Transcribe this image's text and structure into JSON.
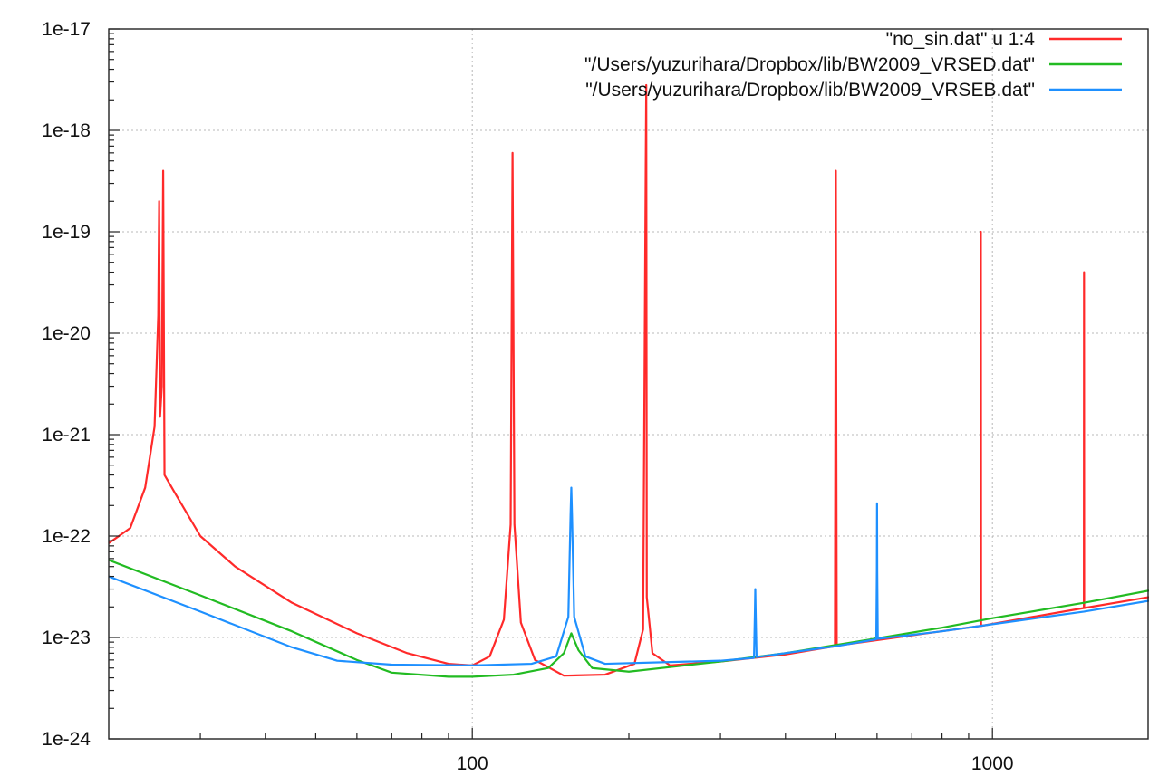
{
  "chart_data": {
    "type": "line",
    "title": "",
    "xlabel": "",
    "ylabel": "",
    "x_scale": "log",
    "y_scale": "log",
    "xlim": [
      20,
      2000
    ],
    "ylim": [
      1e-24,
      1e-17
    ],
    "grid": true,
    "legend_position": "top-right",
    "x_ticks": [
      {
        "value": 100,
        "label": "100"
      },
      {
        "value": 1000,
        "label": "1000"
      }
    ],
    "y_ticks": [
      {
        "value": 1e-17,
        "label": "1e-17"
      },
      {
        "value": 1e-18,
        "label": "1e-18"
      },
      {
        "value": 1e-19,
        "label": "1e-19"
      },
      {
        "value": 1e-20,
        "label": "1e-20"
      },
      {
        "value": 1e-21,
        "label": "1e-21"
      },
      {
        "value": 1e-22,
        "label": "1e-22"
      },
      {
        "value": 1e-23,
        "label": "1e-23"
      },
      {
        "value": 1e-24,
        "label": "1e-24"
      }
    ],
    "series": [
      {
        "name": "\"no_sin.dat\" u 1:4",
        "color": "#ff2a2a",
        "points": [
          [
            20,
            8.5e-23
          ],
          [
            22,
            1.2e-22
          ],
          [
            23.5,
            3e-22
          ],
          [
            24.5,
            1.2e-21
          ],
          [
            24.9,
            1.5e-20
          ],
          [
            25.0,
            2e-19
          ],
          [
            25.1,
            1.5e-21
          ],
          [
            25.3,
            3e-21
          ],
          [
            25.45,
            4e-19
          ],
          [
            25.6,
            4e-22
          ],
          [
            27,
            2.5e-22
          ],
          [
            30,
            1e-22
          ],
          [
            35,
            5e-23
          ],
          [
            45,
            2.2e-23
          ],
          [
            60,
            1.1e-23
          ],
          [
            75,
            7e-24
          ],
          [
            90,
            5.5e-24
          ],
          [
            100,
            5.3e-24
          ],
          [
            108,
            6.5e-24
          ],
          [
            115,
            1.5e-23
          ],
          [
            118.5,
            1.3e-22
          ],
          [
            119.5,
            6e-19
          ],
          [
            120.5,
            1.3e-22
          ],
          [
            124,
            1.4e-23
          ],
          [
            132,
            6e-24
          ],
          [
            150,
            4.2e-24
          ],
          [
            180,
            4.3e-24
          ],
          [
            205,
            5.5e-24
          ],
          [
            213,
            1.2e-23
          ],
          [
            215.5,
            4.5e-19
          ],
          [
            216,
            2.8e-18
          ],
          [
            216.5,
            2.5e-23
          ],
          [
            222,
            7e-24
          ],
          [
            240,
            5.3e-24
          ],
          [
            300,
            5.8e-24
          ],
          [
            400,
            6.8e-24
          ],
          [
            498,
            8.2e-24
          ],
          [
            500,
            4e-19
          ],
          [
            502,
            8.3e-24
          ],
          [
            700,
            1.05e-23
          ],
          [
            949,
            1.3e-23
          ],
          [
            950,
            1e-19
          ],
          [
            951,
            1.3e-23
          ],
          [
            1200,
            1.6e-23
          ],
          [
            1499,
            1.95e-23
          ],
          [
            1500,
            4e-20
          ],
          [
            1501,
            1.95e-23
          ],
          [
            2000,
            2.5e-23
          ]
        ]
      },
      {
        "name": "\"/Users/yuzurihara/Dropbox/lib/BW2009_VRSED.dat\"",
        "color": "#22bb22",
        "points": [
          [
            20,
            5.8e-23
          ],
          [
            30,
            2.6e-23
          ],
          [
            45,
            1.15e-23
          ],
          [
            60,
            6e-24
          ],
          [
            70,
            4.5e-24
          ],
          [
            90,
            4.1e-24
          ],
          [
            100,
            4.1e-24
          ],
          [
            120,
            4.3e-24
          ],
          [
            140,
            5e-24
          ],
          [
            150,
            7e-24
          ],
          [
            155,
            1.1e-23
          ],
          [
            160,
            7.5e-24
          ],
          [
            170,
            5e-24
          ],
          [
            200,
            4.6e-24
          ],
          [
            300,
            5.8e-24
          ],
          [
            400,
            7e-24
          ],
          [
            600,
            9.8e-24
          ],
          [
            800,
            1.25e-23
          ],
          [
            1000,
            1.55e-23
          ],
          [
            1500,
            2.2e-23
          ],
          [
            2000,
            2.9e-23
          ]
        ]
      },
      {
        "name": "\"/Users/yuzurihara/Dropbox/lib/BW2009_VRSEB.dat\"",
        "color": "#1e90ff",
        "points": [
          [
            20,
            4e-23
          ],
          [
            30,
            1.8e-23
          ],
          [
            45,
            8e-24
          ],
          [
            55,
            5.9e-24
          ],
          [
            70,
            5.4e-24
          ],
          [
            100,
            5.3e-24
          ],
          [
            130,
            5.5e-24
          ],
          [
            145,
            6.5e-24
          ],
          [
            153,
            1.6e-23
          ],
          [
            154.5,
            1.6e-22
          ],
          [
            155,
            3e-22
          ],
          [
            155.5,
            1.6e-22
          ],
          [
            157,
            1.6e-23
          ],
          [
            165,
            6.5e-24
          ],
          [
            180,
            5.5e-24
          ],
          [
            300,
            5.9e-24
          ],
          [
            348,
            6.3e-24
          ],
          [
            349.5,
            1.9e-23
          ],
          [
            350,
            3e-23
          ],
          [
            350.5,
            1.9e-23
          ],
          [
            352,
            6.4e-24
          ],
          [
            500,
            8.2e-24
          ],
          [
            598,
            9.6e-24
          ],
          [
            599.5,
            4.5e-23
          ],
          [
            600,
            2.1e-22
          ],
          [
            600.5,
            4.5e-23
          ],
          [
            602,
            9.7e-24
          ],
          [
            800,
            1.15e-23
          ],
          [
            1000,
            1.35e-23
          ],
          [
            1500,
            1.8e-23
          ],
          [
            2000,
            2.3e-23
          ]
        ]
      }
    ]
  }
}
